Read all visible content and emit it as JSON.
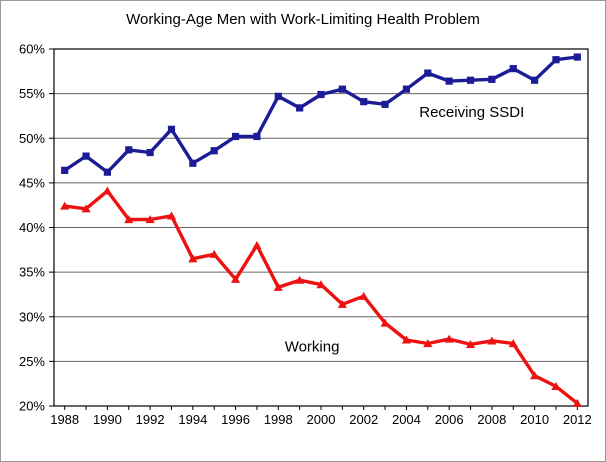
{
  "chart_data": {
    "type": "line",
    "title": "Working-Age Men with Work-Limiting Health Problem",
    "x": [
      1988,
      1989,
      1990,
      1991,
      1992,
      1993,
      1994,
      1995,
      1996,
      1997,
      1998,
      1999,
      2000,
      2001,
      2002,
      2003,
      2004,
      2005,
      2006,
      2007,
      2008,
      2009,
      2010,
      2011,
      2012
    ],
    "x_tick_labels": [
      "1988",
      "1990",
      "1992",
      "1994",
      "1996",
      "1998",
      "2000",
      "2002",
      "2004",
      "2006",
      "2008",
      "2010",
      "2012"
    ],
    "ylim": [
      20,
      60
    ],
    "ytick_values": [
      20,
      25,
      30,
      35,
      40,
      45,
      50,
      55,
      60
    ],
    "ytick_labels": [
      "20%",
      "25%",
      "30%",
      "35%",
      "40%",
      "45%",
      "50%",
      "55%",
      "60%"
    ],
    "grid": "horizontal",
    "legend_position": "none",
    "series": [
      {
        "name": "Receiving SSDI",
        "color": "#1c1c96",
        "marker": "square",
        "values": [
          46.4,
          48.0,
          46.2,
          48.7,
          48.4,
          51.0,
          47.2,
          48.6,
          50.2,
          50.2,
          54.7,
          53.4,
          54.9,
          55.5,
          54.1,
          53.8,
          55.5,
          57.3,
          56.4,
          56.5,
          56.6,
          57.8,
          56.5,
          58.8,
          59.1
        ]
      },
      {
        "name": "Working",
        "color": "#ee1111",
        "marker": "triangle",
        "values": [
          42.4,
          42.1,
          44.1,
          40.9,
          40.9,
          41.3,
          36.5,
          37.0,
          34.2,
          38.0,
          33.3,
          34.1,
          33.6,
          31.4,
          32.3,
          29.3,
          27.4,
          27.0,
          27.5,
          26.9,
          27.3,
          27.0,
          23.4,
          22.2,
          20.3
        ]
      }
    ],
    "annotations": [
      {
        "text": "Receiving SSDI",
        "x": 2004.6,
        "y": 52.4
      },
      {
        "text": "Working",
        "x": 1998.3,
        "y": 26.1
      }
    ],
    "colors": {
      "grid": "#666666",
      "axis": "#000000",
      "frame_border": "#9a9a9a",
      "background": "#ffffff"
    }
  }
}
